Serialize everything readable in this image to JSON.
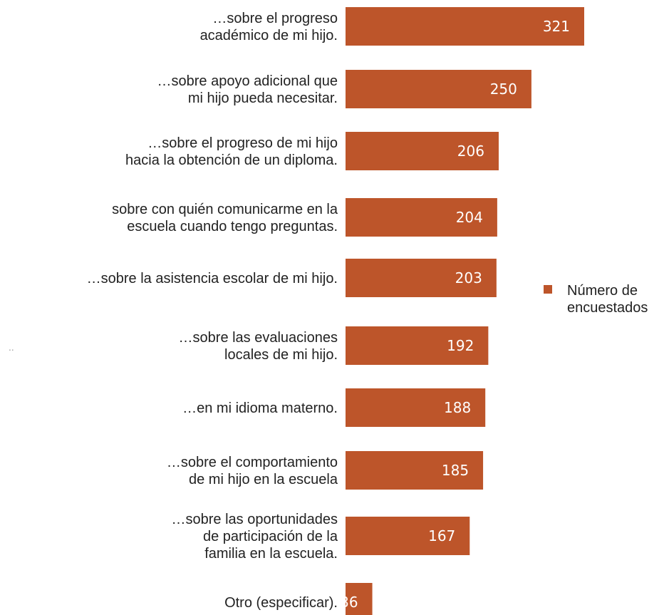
{
  "chart_data": {
    "type": "bar",
    "orientation": "horizontal",
    "categories": [
      [
        "…sobre el progreso",
        "académico de mi hijo."
      ],
      [
        "…sobre apoyo adicional que",
        "mi hijo pueda necesitar."
      ],
      [
        "…sobre el progreso de mi hijo",
        "hacia la obtención de un diploma."
      ],
      [
        "sobre con quién comunicarme en la",
        "escuela cuando tengo preguntas."
      ],
      [
        "…sobre la asistencia escolar de mi hijo."
      ],
      [
        "…sobre las evaluaciones",
        "locales de mi hijo."
      ],
      [
        "…en mi idioma materno."
      ],
      [
        "…sobre el comportamiento",
        "de mi hijo en la escuela"
      ],
      [
        "…sobre las oportunidades",
        "de participación de la",
        "familia en la escuela."
      ],
      [
        "Otro (especificar)."
      ]
    ],
    "series": [
      {
        "name": "Número de encuestados",
        "values": [
          321,
          250,
          206,
          204,
          203,
          192,
          188,
          185,
          167,
          36
        ],
        "data_labels": [
          "321",
          "250",
          "206",
          "204",
          "203",
          "192",
          "188",
          "185",
          "167",
          "36"
        ]
      }
    ],
    "legend": {
      "position": "right",
      "lines": [
        "Número de",
        "encuestados"
      ]
    },
    "stray_mark": "..",
    "colors": {
      "bar": "#bd552a",
      "data_label": "#ffffff",
      "text": "#222222",
      "stray_mark": "#999999"
    },
    "grid": false
  }
}
